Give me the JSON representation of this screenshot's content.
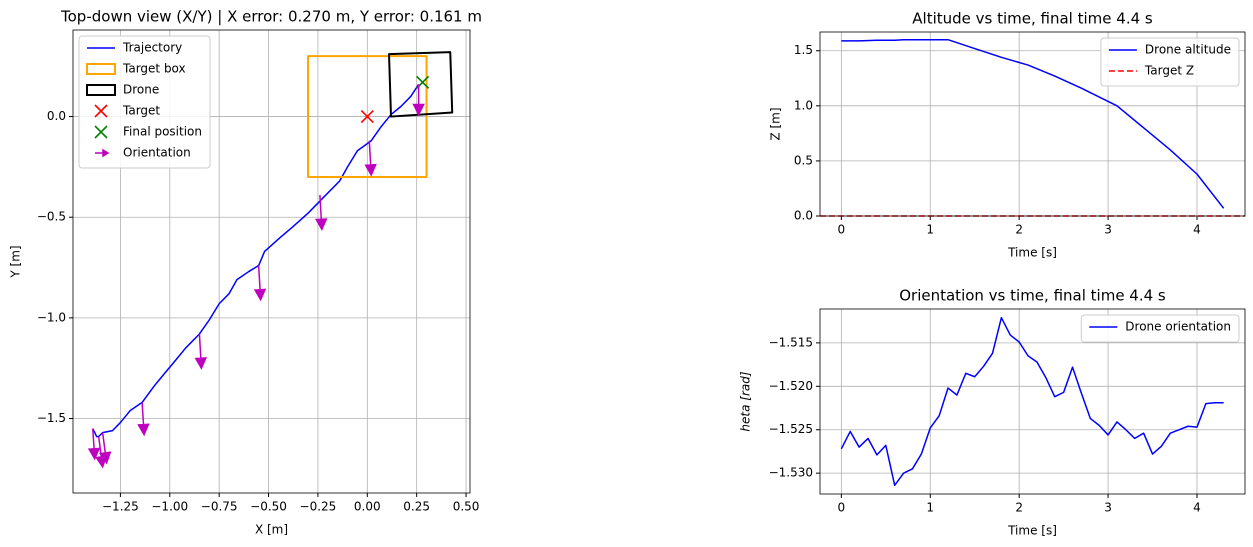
{
  "chart_data": [
    {
      "type": "topdown",
      "title": "Top-down view (X/Y) | X error: 0.270 m, Y error: 0.161 m",
      "xlabel": "X [m]",
      "ylabel": "Y [m]",
      "xlim": [
        -1.49,
        0.52
      ],
      "ylim": [
        -1.87,
        0.43
      ],
      "xticks": [
        {
          "value": -1.25,
          "label": "−1.25"
        },
        {
          "value": -1.0,
          "label": "−1.00"
        },
        {
          "value": -0.75,
          "label": "−0.75"
        },
        {
          "value": -0.5,
          "label": "−0.50"
        },
        {
          "value": -0.25,
          "label": "−0.25"
        },
        {
          "value": 0,
          "label": "0.00"
        },
        0.25,
        {
          "value": 0.5,
          "label": "0.50"
        }
      ],
      "yticks": [
        {
          "value": -1.5,
          "label": "−1.5"
        },
        {
          "value": -1.0,
          "label": "−1.0"
        },
        {
          "value": -0.5,
          "label": "−0.5"
        },
        {
          "value": 0,
          "label": "0.0"
        }
      ],
      "grid": true,
      "legend": "upper left",
      "series": [
        {
          "name": "Trajectory",
          "kind": "line",
          "color": "#0000ff",
          "x": [
            -1.39,
            -1.37,
            -1.36,
            -1.34,
            -1.29,
            -1.25,
            -1.2,
            -1.14,
            -1.08,
            -1.03,
            -0.97,
            -0.92,
            -0.85,
            -0.8,
            -0.75,
            -0.7,
            -0.66,
            -0.6,
            -0.55,
            -0.52,
            -0.44,
            -0.38,
            -0.3,
            -0.22,
            -0.14,
            -0.1,
            -0.05,
            0.02,
            0.07,
            0.12,
            0.17,
            0.22,
            0.26
          ],
          "y": [
            -1.55,
            -1.59,
            -1.59,
            -1.57,
            -1.56,
            -1.52,
            -1.46,
            -1.42,
            -1.34,
            -1.28,
            -1.21,
            -1.15,
            -1.08,
            -1.01,
            -0.93,
            -0.88,
            -0.81,
            -0.77,
            -0.74,
            -0.67,
            -0.6,
            -0.55,
            -0.48,
            -0.4,
            -0.32,
            -0.25,
            -0.17,
            -0.12,
            -0.05,
            0.01,
            0.05,
            0.1,
            0.16
          ]
        },
        {
          "name": "Target box",
          "kind": "polygon",
          "color": "#ffa500",
          "x": [
            -0.3,
            0.3,
            0.3,
            -0.3
          ],
          "y": [
            -0.3,
            -0.3,
            0.3,
            0.3
          ]
        },
        {
          "name": "Drone",
          "kind": "polygon",
          "color": "#000000",
          "x": [
            0.11,
            0.42,
            0.43,
            0.12
          ],
          "y": [
            0.31,
            0.32,
            0.02,
            0.0
          ]
        },
        {
          "name": "Target",
          "kind": "marker",
          "color": "#ff0000",
          "x": [
            0
          ],
          "y": [
            0
          ]
        },
        {
          "name": "Final position",
          "kind": "marker",
          "color": "#008000",
          "x": [
            0.28
          ],
          "y": [
            0.17
          ]
        },
        {
          "name": "Orientation",
          "kind": "quiver",
          "color": "#bf00bf",
          "x": [
            -1.39,
            -1.36,
            -1.34,
            -1.14,
            -0.85,
            -0.55,
            -0.24,
            0.01,
            0.26
          ],
          "y": [
            -1.55,
            -1.59,
            -1.57,
            -1.42,
            -1.08,
            -0.74,
            -0.39,
            -0.12,
            0.16
          ],
          "u": [
            0.01,
            0.02,
            0.02,
            0.01,
            0.01,
            0.01,
            0.01,
            0.01,
            0.0
          ],
          "v": [
            -0.15,
            -0.15,
            -0.15,
            -0.16,
            -0.17,
            -0.17,
            -0.17,
            -0.17,
            -0.15
          ]
        }
      ]
    },
    {
      "type": "line",
      "title": "Altitude vs time, final time 4.4 s",
      "xlabel": "Time [s]",
      "ylabel": "Z [m]",
      "xlim": [
        -0.24,
        4.54
      ],
      "ylim": [
        0,
        1.67
      ],
      "xticks": [
        0,
        1,
        2,
        3,
        4
      ],
      "yticks": [
        {
          "value": 0,
          "label": "0.0"
        },
        0.5,
        {
          "value": 1,
          "label": "1.0"
        },
        1.5
      ],
      "grid": true,
      "legend": "upper right",
      "series": [
        {
          "name": "Drone altitude",
          "kind": "line",
          "color": "#0000ff",
          "x": [
            0,
            0.2,
            0.4,
            0.6,
            0.7,
            1.2,
            1.5,
            1.8,
            2.1,
            2.4,
            2.7,
            3.1,
            3.4,
            3.7,
            4.0,
            4.3
          ],
          "y": [
            1.59,
            1.59,
            1.595,
            1.595,
            1.6,
            1.6,
            1.52,
            1.44,
            1.37,
            1.27,
            1.16,
            1.0,
            0.8,
            0.6,
            0.38,
            0.07
          ]
        },
        {
          "name": "Target Z",
          "kind": "hline",
          "color": "#ff0000",
          "value": 0
        }
      ]
    },
    {
      "type": "line",
      "title": "Orientation vs time, final time 4.4 s",
      "xlabel": "Time [s]",
      "ylabel": "heta [rad]",
      "xlim": [
        -0.24,
        4.54
      ],
      "ylim": [
        -1.5324,
        -1.5111
      ],
      "xticks": [
        0,
        1,
        2,
        3,
        4
      ],
      "yticks": [
        {
          "value": -1.53,
          "label": "−1.530"
        },
        {
          "value": -1.525,
          "label": "−1.525"
        },
        {
          "value": -1.52,
          "label": "−1.520"
        },
        {
          "value": -1.515,
          "label": "−1.515"
        }
      ],
      "grid": true,
      "legend": "upper right",
      "series": [
        {
          "name": "Drone orientation",
          "kind": "line",
          "color": "#0000ff",
          "x": [
            0,
            0.1,
            0.2,
            0.3,
            0.4,
            0.5,
            0.6,
            0.7,
            0.8,
            0.9,
            1.0,
            1.1,
            1.2,
            1.3,
            1.4,
            1.5,
            1.6,
            1.7,
            1.8,
            1.9,
            2.0,
            2.1,
            2.2,
            2.3,
            2.4,
            2.5,
            2.6,
            2.7,
            2.8,
            2.9,
            3.0,
            3.1,
            3.2,
            3.3,
            3.4,
            3.5,
            3.6,
            3.7,
            3.8,
            3.9,
            4.0,
            4.1,
            4.2,
            4.3
          ],
          "y": [
            -1.5272,
            -1.5252,
            -1.527,
            -1.526,
            -1.5279,
            -1.5268,
            -1.5314,
            -1.53,
            -1.5295,
            -1.5278,
            -1.5248,
            -1.5234,
            -1.5202,
            -1.521,
            -1.5185,
            -1.5189,
            -1.5177,
            -1.5162,
            -1.5121,
            -1.5141,
            -1.5149,
            -1.5165,
            -1.5172,
            -1.519,
            -1.5212,
            -1.5207,
            -1.5178,
            -1.5208,
            -1.5237,
            -1.5245,
            -1.5256,
            -1.5241,
            -1.525,
            -1.526,
            -1.5254,
            -1.5278,
            -1.5269,
            -1.5254,
            -1.525,
            -1.5246,
            -1.5247,
            -1.522,
            -1.5219,
            -1.5219
          ]
        }
      ]
    }
  ]
}
